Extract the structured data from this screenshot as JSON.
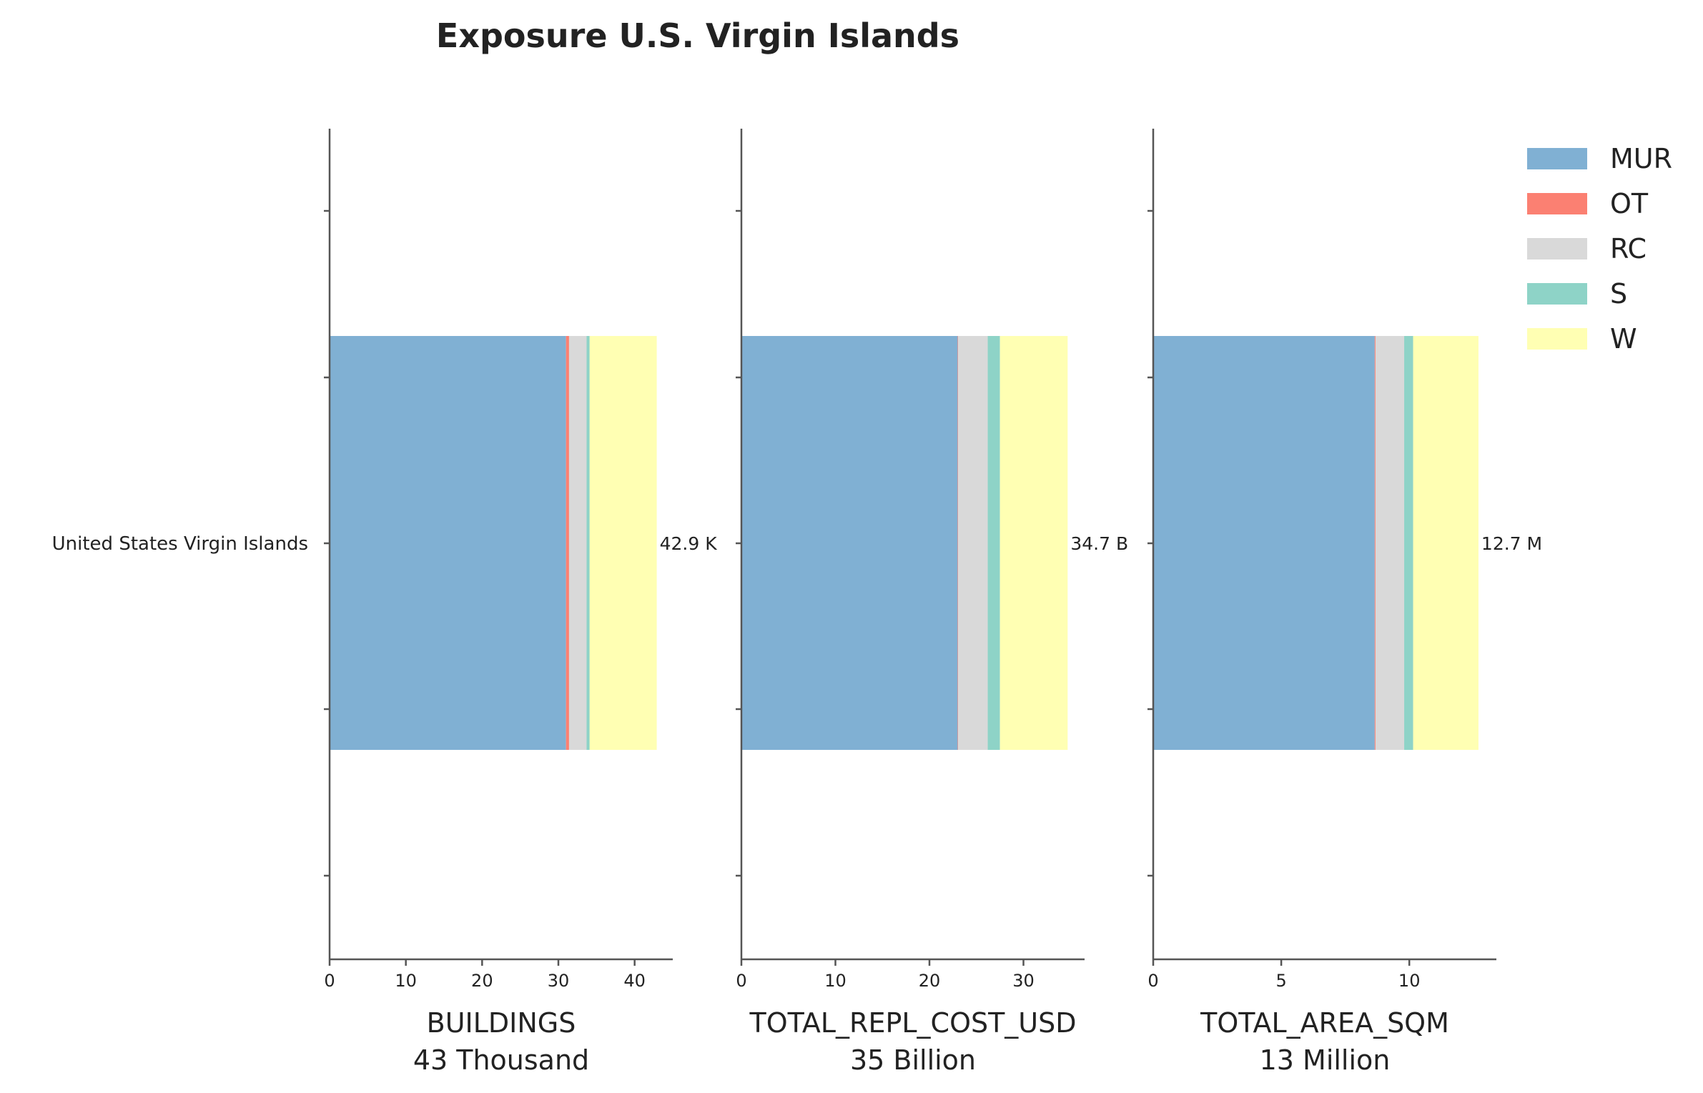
{
  "chart_data": {
    "type": "bar",
    "orientation": "horizontal",
    "stacked": true,
    "title": "Exposure U.S. Virgin Islands",
    "categories": [
      "United States Virgin Islands"
    ],
    "legend": {
      "placement": "top-right",
      "entries": [
        {
          "name": "MUR",
          "color": "#80b0d3"
        },
        {
          "name": "OT",
          "color": "#fb8072"
        },
        {
          "name": "RC",
          "color": "#d9d9d9"
        },
        {
          "name": "S",
          "color": "#8ed3c7"
        },
        {
          "name": "W",
          "color": "#ffffb3"
        }
      ]
    },
    "panels": [
      {
        "xlabel": "BUILDINGS",
        "sublabel": "43 Thousand",
        "total_label": "42.9 K",
        "xlim": [
          0,
          45
        ],
        "xticks": [
          0,
          10,
          20,
          30,
          40
        ],
        "segments": [
          {
            "name": "MUR",
            "value": 31.0
          },
          {
            "name": "OT",
            "value": 0.4
          },
          {
            "name": "RC",
            "value": 2.3
          },
          {
            "name": "S",
            "value": 0.4
          },
          {
            "name": "W",
            "value": 8.8
          }
        ]
      },
      {
        "xlabel": "TOTAL_REPL_COST_USD",
        "sublabel": "35 Billion",
        "total_label": "34.7 B",
        "xlim": [
          0,
          36.5
        ],
        "xticks": [
          0,
          10,
          20,
          30
        ],
        "segments": [
          {
            "name": "MUR",
            "value": 23.0
          },
          {
            "name": "OT",
            "value": 0.05
          },
          {
            "name": "RC",
            "value": 3.15
          },
          {
            "name": "S",
            "value": 1.3
          },
          {
            "name": "W",
            "value": 7.2
          }
        ]
      },
      {
        "xlabel": "TOTAL_AREA_SQM",
        "sublabel": "13 Million",
        "total_label": "12.7 M",
        "xlim": [
          0,
          13.4
        ],
        "xticks": [
          0,
          5,
          10
        ],
        "segments": [
          {
            "name": "MUR",
            "value": 8.65
          },
          {
            "name": "OT",
            "value": 0.03
          },
          {
            "name": "RC",
            "value": 1.12
          },
          {
            "name": "S",
            "value": 0.35
          },
          {
            "name": "W",
            "value": 2.55
          }
        ]
      }
    ]
  }
}
